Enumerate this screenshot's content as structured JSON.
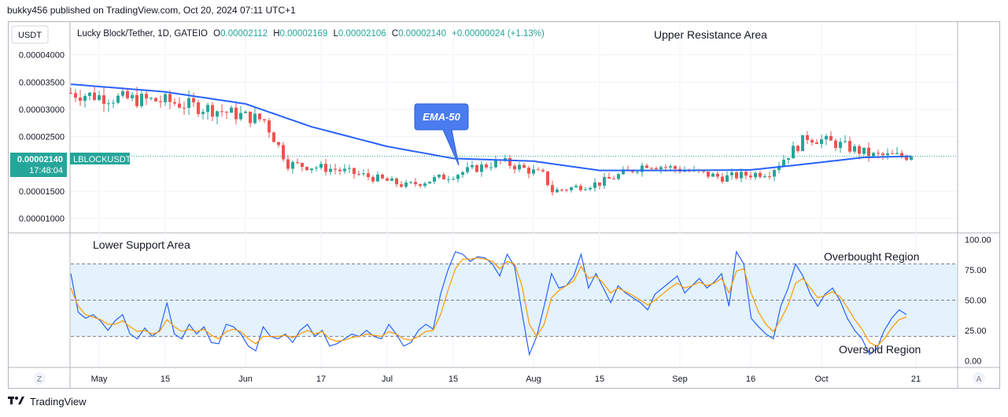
{
  "caption": "bukky456 published on TradingView.com, Oct 20, 2024 07:11 UTC+1",
  "footer": {
    "brand": "TradingView",
    "logo_icon": "tradingview-logo-icon"
  },
  "colors": {
    "up": "#26a69a",
    "down": "#ef5350",
    "ema": "#2962ff",
    "rsi": "#2962ff",
    "rsi_ma": "#ff9800",
    "band": "#e3f2fd",
    "price_badge": "#26a69a"
  },
  "price_panel": {
    "currency": "USDT",
    "legend": {
      "title": "Lucky Block/Tether, 1D, GATEIO",
      "o_label": "O",
      "o_value": "0.00002112",
      "h_label": "H",
      "h_value": "0.00002169",
      "l_label": "L",
      "l_value": "0.00002106",
      "c_label": "C",
      "c_value": "0.00002140",
      "change": "+0.00000024 (+1.13%)"
    },
    "y_ticks": [
      "0.00004000",
      "0.00003500",
      "0.00003000",
      "0.00002500",
      "0.00001500",
      "0.00001000"
    ],
    "current_price": "0.00002140",
    "countdown": "17:48:04",
    "symbol": "LBLOCKUSDT",
    "annotation_top": "Upper Resistance Area",
    "ema_callout": "EMA-50"
  },
  "rsi_panel": {
    "annotation_lower": "Lower Support Area",
    "overbought": "Overbought Region",
    "oversold": "Oversold Region",
    "y_ticks": [
      "100.00",
      "75.00",
      "50.00",
      "25.00",
      "0.00"
    ]
  },
  "x_axis": {
    "labels": [
      "May",
      "15",
      "Jun",
      "17",
      "Jul",
      "15",
      "Aug",
      "15",
      "Sep",
      "16",
      "Oct",
      "21"
    ],
    "left_button": "Z",
    "right_button": "A"
  },
  "chart_data": [
    {
      "type": "candlestick",
      "symbol": "LBLOCKUSDT",
      "timeframe": "1D",
      "ylim": [
        7.5e-06,
        4.6e-05
      ],
      "last": {
        "open": 2.112e-05,
        "high": 2.169e-05,
        "low": 2.106e-05,
        "close": 2.14e-05
      },
      "ema50_approx": [
        {
          "x": "2024-04-25",
          "y": 3.46e-05
        },
        {
          "x": "2024-05-15",
          "y": 3.32e-05
        },
        {
          "x": "2024-06-01",
          "y": 3.1e-05
        },
        {
          "x": "2024-06-15",
          "y": 2.68e-05
        },
        {
          "x": "2024-07-01",
          "y": 2.32e-05
        },
        {
          "x": "2024-07-15",
          "y": 2.1e-05
        },
        {
          "x": "2024-08-01",
          "y": 2.05e-05
        },
        {
          "x": "2024-08-15",
          "y": 1.88e-05
        },
        {
          "x": "2024-09-01",
          "y": 1.88e-05
        },
        {
          "x": "2024-09-16",
          "y": 1.89e-05
        },
        {
          "x": "2024-09-28",
          "y": 2e-05
        },
        {
          "x": "2024-10-10",
          "y": 2.12e-05
        },
        {
          "x": "2024-10-20",
          "y": 2.14e-05
        }
      ],
      "close_approx": [
        {
          "x": "2024-04-25",
          "y": 3.3e-05
        },
        {
          "x": "2024-05-05",
          "y": 3.2e-05
        },
        {
          "x": "2024-05-15",
          "y": 3.15e-05
        },
        {
          "x": "2024-05-25",
          "y": 3e-05
        },
        {
          "x": "2024-06-05",
          "y": 2.8e-05
        },
        {
          "x": "2024-06-10",
          "y": 2e-05
        },
        {
          "x": "2024-06-20",
          "y": 1.9e-05
        },
        {
          "x": "2024-06-28",
          "y": 1.75e-05
        },
        {
          "x": "2024-07-05",
          "y": 1.6e-05
        },
        {
          "x": "2024-07-15",
          "y": 1.8e-05
        },
        {
          "x": "2024-07-25",
          "y": 2.05e-05
        },
        {
          "x": "2024-08-03",
          "y": 1.8e-05
        },
        {
          "x": "2024-08-05",
          "y": 1.5e-05
        },
        {
          "x": "2024-08-15",
          "y": 1.65e-05
        },
        {
          "x": "2024-08-25",
          "y": 2e-05
        },
        {
          "x": "2024-09-01",
          "y": 1.9e-05
        },
        {
          "x": "2024-09-10",
          "y": 1.75e-05
        },
        {
          "x": "2024-09-20",
          "y": 1.85e-05
        },
        {
          "x": "2024-09-28",
          "y": 2.5e-05
        },
        {
          "x": "2024-10-05",
          "y": 2.35e-05
        },
        {
          "x": "2024-10-12",
          "y": 2.15e-05
        },
        {
          "x": "2024-10-20",
          "y": 2.14e-05
        }
      ]
    },
    {
      "type": "line",
      "title": "",
      "ylim": [
        -5,
        105
      ],
      "levels": [
        80,
        50,
        20
      ],
      "series": [
        {
          "values": [
            72,
            40,
            35,
            38,
            33,
            25,
            33,
            38,
            22,
            18,
            27,
            20,
            25,
            48,
            22,
            18,
            30,
            22,
            28,
            15,
            14,
            30,
            28,
            22,
            12,
            8,
            28,
            20,
            18,
            22,
            15,
            25,
            30,
            20,
            25,
            12,
            14,
            18,
            22,
            20,
            25,
            20,
            18,
            30,
            22,
            12,
            15,
            25,
            30,
            26,
            55,
            75,
            90,
            88,
            82,
            86,
            85,
            80,
            70,
            88,
            78,
            40,
            5,
            20,
            45,
            72,
            60,
            62,
            70,
            88,
            60,
            72,
            60,
            48,
            62,
            56,
            52,
            48,
            42,
            55,
            60,
            65,
            70,
            56,
            62,
            68,
            60,
            65,
            72,
            45,
            90,
            80,
            35,
            28,
            22,
            18,
            45,
            60,
            80,
            70,
            55,
            45,
            55,
            60,
            50,
            35,
            25,
            18,
            5,
            10,
            25,
            35,
            42,
            38
          ]
        },
        {
          "values": [
            60,
            45,
            38,
            36,
            34,
            30,
            30,
            33,
            28,
            24,
            25,
            22,
            24,
            34,
            28,
            24,
            26,
            24,
            26,
            21,
            18,
            24,
            26,
            24,
            18,
            14,
            20,
            20,
            20,
            21,
            19,
            22,
            25,
            22,
            24,
            18,
            16,
            17,
            19,
            20,
            22,
            21,
            20,
            24,
            22,
            18,
            17,
            20,
            24,
            25,
            38,
            58,
            76,
            84,
            84,
            85,
            84,
            82,
            76,
            82,
            80,
            62,
            30,
            20,
            30,
            52,
            58,
            62,
            66,
            78,
            68,
            70,
            64,
            56,
            60,
            57,
            54,
            50,
            46,
            50,
            55,
            60,
            64,
            60,
            62,
            65,
            62,
            64,
            68,
            56,
            74,
            76,
            56,
            40,
            30,
            24,
            34,
            46,
            64,
            68,
            60,
            52,
            54,
            57,
            53,
            44,
            34,
            26,
            15,
            12,
            18,
            27,
            34,
            36
          ]
        }
      ]
    }
  ]
}
